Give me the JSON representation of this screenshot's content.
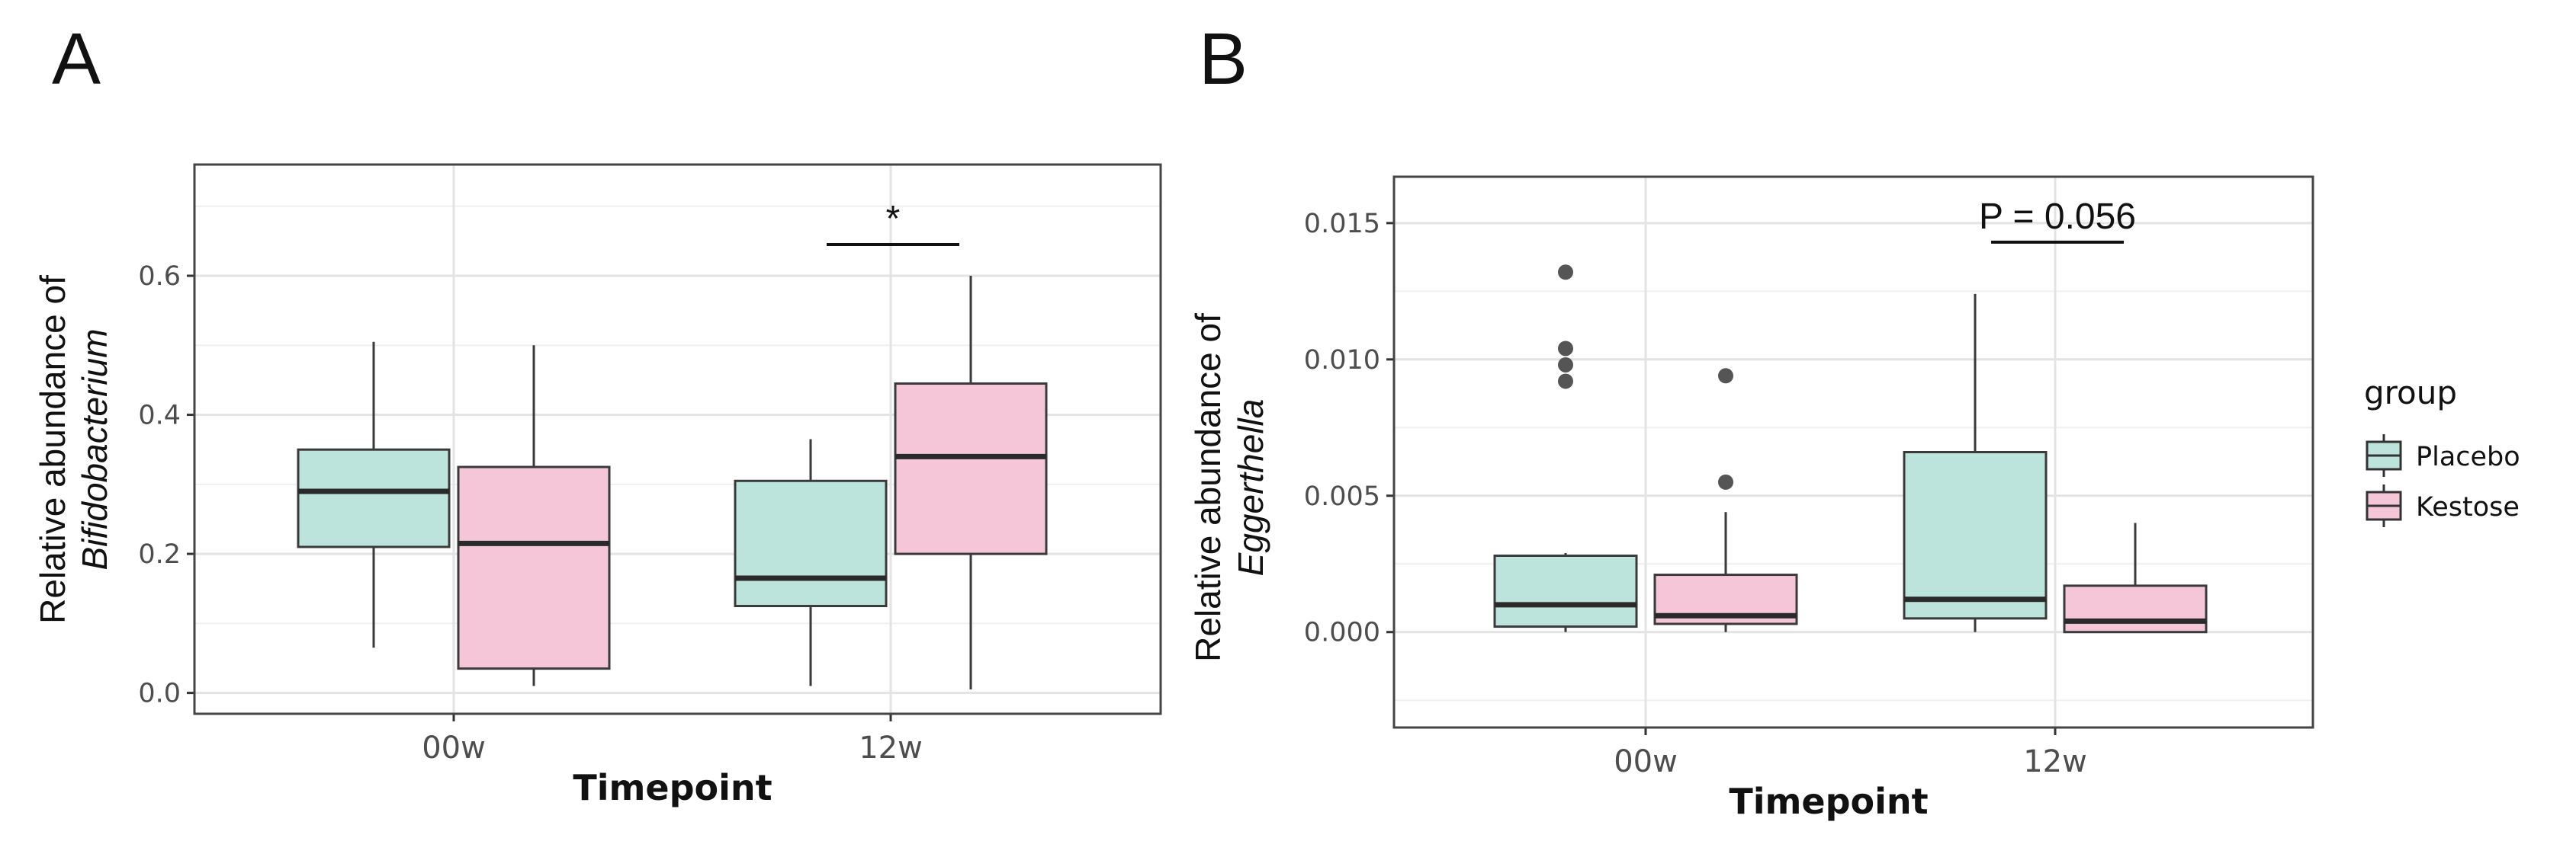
{
  "chart_data": [
    {
      "panel": "A",
      "type": "box",
      "xlabel": "Timepoint",
      "ylabel": "Relative abundance of",
      "ylabel_taxon": "Bifidobacterium",
      "categories": [
        "00w",
        "12w"
      ],
      "ylim": [
        -0.03,
        0.76
      ],
      "yticks": [
        0.0,
        0.2,
        0.4,
        0.6
      ],
      "ytick_labels": [
        "0.0",
        "0.2",
        "0.4",
        "0.6"
      ],
      "grid": true,
      "series": [
        {
          "name": "Placebo",
          "color": "#bde4dc",
          "boxes": [
            {
              "category": "00w",
              "whisker_low": 0.065,
              "q1": 0.21,
              "median": 0.29,
              "q3": 0.35,
              "whisker_high": 0.505,
              "outliers": []
            },
            {
              "category": "12w",
              "whisker_low": 0.01,
              "q1": 0.125,
              "median": 0.165,
              "q3": 0.305,
              "whisker_high": 0.365,
              "outliers": []
            }
          ]
        },
        {
          "name": "Kestose",
          "color": "#f5c6d8",
          "boxes": [
            {
              "category": "00w",
              "whisker_low": 0.01,
              "q1": 0.035,
              "median": 0.215,
              "q3": 0.325,
              "whisker_high": 0.5,
              "outliers": []
            },
            {
              "category": "12w",
              "whisker_low": 0.005,
              "q1": 0.2,
              "median": 0.34,
              "q3": 0.445,
              "whisker_high": 0.6,
              "outliers": []
            }
          ]
        }
      ],
      "annotations": [
        {
          "text": "*",
          "category": "12w",
          "y": 0.645
        }
      ]
    },
    {
      "panel": "B",
      "type": "box",
      "xlabel": "Timepoint",
      "ylabel": "Relative abundance of",
      "ylabel_taxon": "Eggerthella",
      "categories": [
        "00w",
        "12w"
      ],
      "ylim": [
        -0.0035,
        0.0167
      ],
      "yticks": [
        0.0,
        0.005,
        0.01,
        0.015
      ],
      "ytick_labels": [
        "0.000",
        "0.005",
        "0.010",
        "0.015"
      ],
      "grid": true,
      "series": [
        {
          "name": "Placebo",
          "color": "#bde4dc",
          "boxes": [
            {
              "category": "00w",
              "whisker_low": 0.0,
              "q1": 0.0002,
              "median": 0.001,
              "q3": 0.0028,
              "whisker_high": 0.0029,
              "outliers": [
                0.0092,
                0.0098,
                0.0104,
                0.0132
              ]
            },
            {
              "category": "12w",
              "whisker_low": 0.0,
              "q1": 0.0005,
              "median": 0.0012,
              "q3": 0.0066,
              "whisker_high": 0.0124,
              "outliers": []
            }
          ]
        },
        {
          "name": "Kestose",
          "color": "#f5c6d8",
          "boxes": [
            {
              "category": "00w",
              "whisker_low": 0.0,
              "q1": 0.0003,
              "median": 0.0006,
              "q3": 0.0021,
              "whisker_high": 0.0044,
              "outliers": [
                0.0055,
                0.0094
              ]
            },
            {
              "category": "12w",
              "whisker_low": 0.0,
              "q1": 0.0,
              "median": 0.0004,
              "q3": 0.0017,
              "whisker_high": 0.004,
              "outliers": []
            }
          ]
        }
      ],
      "annotations": [
        {
          "text": "P = 0.056",
          "category": "12w",
          "y": 0.0143
        }
      ]
    }
  ],
  "legend": {
    "title": "group",
    "placement": "right",
    "items": [
      {
        "label": "Placebo",
        "color": "#bde4dc"
      },
      {
        "label": "Kestose",
        "color": "#f5c6d8"
      }
    ]
  }
}
